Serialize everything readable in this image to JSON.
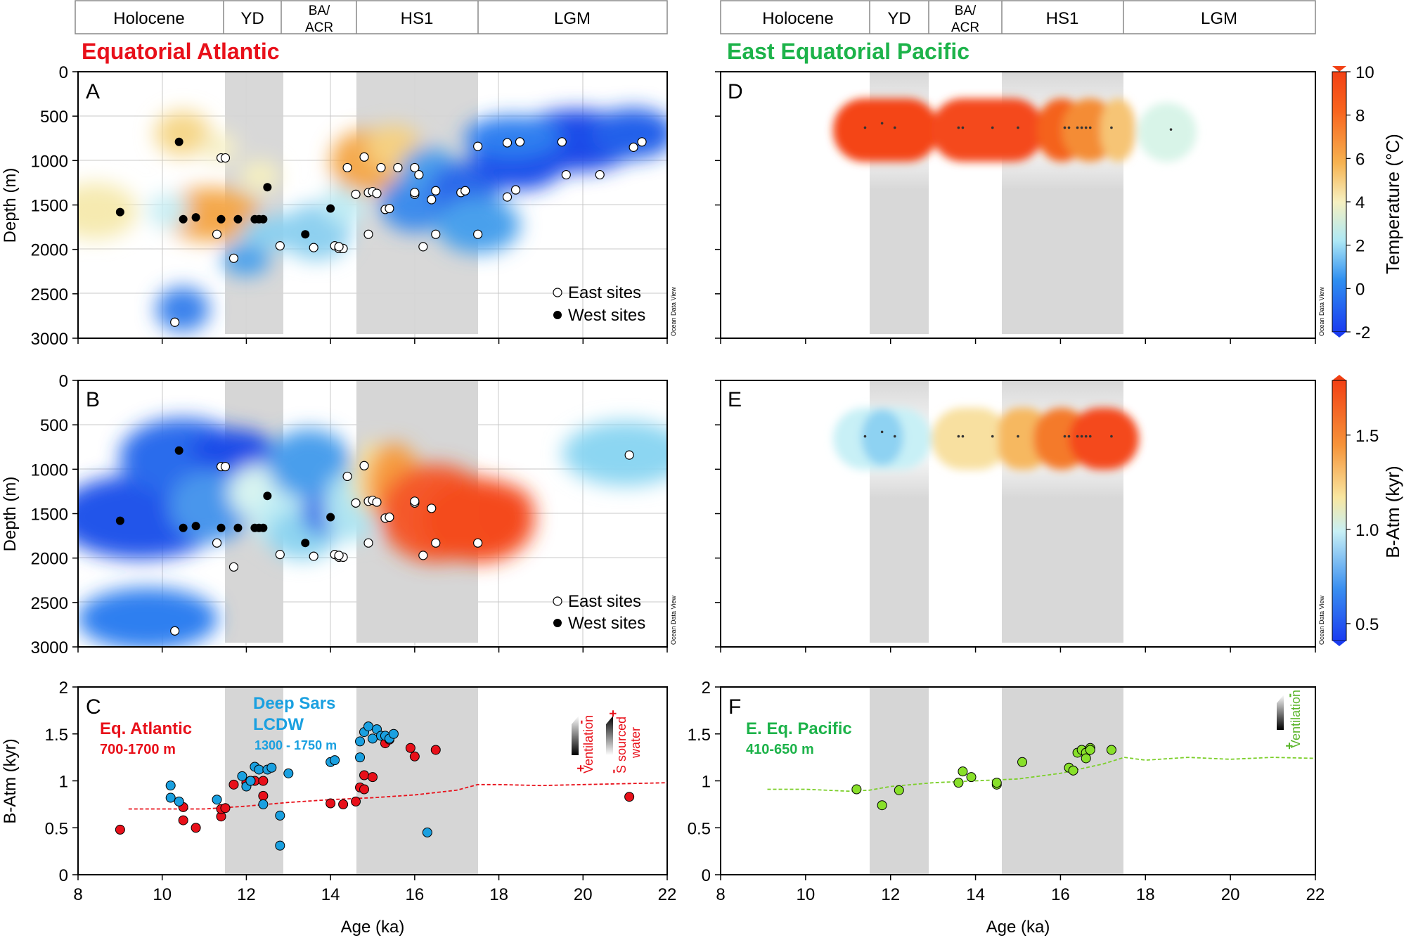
{
  "colors": {
    "atlantic_red": "#e8101a",
    "pacific_green": "#1db34a",
    "lcdw_blue": "#1aa0e0",
    "green_marker": "#88e02a",
    "green_line": "#7ccf2a",
    "band_grey": "#d4d4d4"
  },
  "periods": [
    "Holocene",
    "YD",
    "BA/ACR",
    "HS1",
    "LGM"
  ],
  "panel_titles": {
    "left": "Equatorial Atlantic",
    "right": "East Equatorial Pacific"
  },
  "labels": {
    "depth": "Depth (m)",
    "batm": "B-Atm (kyr)",
    "age": "Age (ka)",
    "temperature": "Temperature (°C)",
    "batm_scale": "B-Atm (kyr)",
    "odv": "Ocean Data View",
    "east": "East sites",
    "west": "West sites",
    "ventilation": "Ventilation",
    "s_sourced": "S sourced",
    "water": "water"
  },
  "annotations": {
    "eq_atlantic": "Eq. Atlantic",
    "eq_atlantic_depth": "700-1700 m",
    "deep_sars": "Deep Sars",
    "lcdw": "LCDW",
    "lcdw_depth": "1300 - 1750 m",
    "e_eq_pacific": "E. Eq. Pacific",
    "e_eq_pacific_depth": "410-650 m"
  },
  "chart_data": [
    {
      "id": "A",
      "type": "scatter",
      "title": "A",
      "xlim": [
        8,
        22
      ],
      "ylim": [
        3000,
        0
      ],
      "xlabel": "",
      "ylabel": "Depth (m)",
      "xticks": [
        8,
        10,
        12,
        14,
        16,
        18,
        20,
        22
      ],
      "yticks": [
        0,
        500,
        1000,
        1500,
        2000,
        2500,
        3000
      ],
      "legend": [
        "East sites",
        "West sites"
      ],
      "east_sites": [
        [
          10.3,
          2820
        ],
        [
          11.3,
          1830
        ],
        [
          11.4,
          970
        ],
        [
          11.5,
          970
        ],
        [
          11.7,
          2100
        ],
        [
          12.8,
          1960
        ],
        [
          13.6,
          1980
        ],
        [
          14.1,
          1960
        ],
        [
          14.2,
          1990
        ],
        [
          14.3,
          1990
        ],
        [
          14.2,
          1970
        ],
        [
          14.4,
          1080
        ],
        [
          14.6,
          1380
        ],
        [
          14.8,
          960
        ],
        [
          14.9,
          1360
        ],
        [
          14.9,
          1830
        ],
        [
          15.0,
          1350
        ],
        [
          15.1,
          1370
        ],
        [
          15.2,
          1080
        ],
        [
          15.3,
          1550
        ],
        [
          15.4,
          1540
        ],
        [
          15.6,
          1080
        ],
        [
          16.0,
          1380
        ],
        [
          16.0,
          1360
        ],
        [
          16.0,
          1080
        ],
        [
          16.1,
          1160
        ],
        [
          16.2,
          1970
        ],
        [
          16.4,
          1440
        ],
        [
          16.5,
          1830
        ],
        [
          16.5,
          1340
        ],
        [
          17.1,
          1360
        ],
        [
          17.2,
          1340
        ],
        [
          17.5,
          1830
        ],
        [
          17.5,
          840
        ],
        [
          18.2,
          1410
        ],
        [
          18.4,
          1330
        ],
        [
          18.2,
          800
        ],
        [
          18.5,
          790
        ],
        [
          19.5,
          790
        ],
        [
          19.6,
          1160
        ],
        [
          20.4,
          1160
        ],
        [
          21.2,
          850
        ],
        [
          21.4,
          790
        ]
      ],
      "west_sites": [
        [
          9.0,
          1580
        ],
        [
          10.4,
          790
        ],
        [
          10.5,
          1660
        ],
        [
          10.8,
          1640
        ],
        [
          11.4,
          1660
        ],
        [
          11.8,
          1660
        ],
        [
          12.2,
          1660
        ],
        [
          12.3,
          1660
        ],
        [
          12.4,
          1660
        ],
        [
          12.5,
          1300
        ],
        [
          13.4,
          1830
        ],
        [
          14.0,
          1540
        ]
      ]
    },
    {
      "id": "B",
      "type": "scatter",
      "title": "B",
      "xlim": [
        8,
        22
      ],
      "ylim": [
        3000,
        0
      ],
      "xlabel": "",
      "ylabel": "Depth (m)",
      "xticks": [
        8,
        10,
        12,
        14,
        16,
        18,
        20,
        22
      ],
      "yticks": [
        0,
        500,
        1000,
        1500,
        2000,
        2500,
        3000
      ],
      "legend": [
        "East sites",
        "West sites"
      ],
      "east_sites": [
        [
          10.3,
          2820
        ],
        [
          11.3,
          1830
        ],
        [
          11.4,
          970
        ],
        [
          11.5,
          970
        ],
        [
          11.7,
          2100
        ],
        [
          12.8,
          1960
        ],
        [
          13.6,
          1980
        ],
        [
          14.1,
          1960
        ],
        [
          14.2,
          1990
        ],
        [
          14.3,
          1990
        ],
        [
          14.2,
          1970
        ],
        [
          14.4,
          1080
        ],
        [
          14.6,
          1380
        ],
        [
          14.8,
          960
        ],
        [
          14.9,
          1360
        ],
        [
          14.9,
          1830
        ],
        [
          15.0,
          1350
        ],
        [
          15.1,
          1370
        ],
        [
          15.3,
          1550
        ],
        [
          15.4,
          1540
        ],
        [
          16.0,
          1380
        ],
        [
          16.0,
          1360
        ],
        [
          16.2,
          1970
        ],
        [
          16.4,
          1440
        ],
        [
          16.5,
          1830
        ],
        [
          17.5,
          1830
        ],
        [
          21.1,
          840
        ]
      ],
      "west_sites": [
        [
          9.0,
          1580
        ],
        [
          10.4,
          790
        ],
        [
          10.5,
          1660
        ],
        [
          10.8,
          1640
        ],
        [
          11.4,
          1660
        ],
        [
          11.8,
          1660
        ],
        [
          12.2,
          1660
        ],
        [
          12.3,
          1660
        ],
        [
          12.4,
          1660
        ],
        [
          12.5,
          1300
        ],
        [
          13.4,
          1830
        ],
        [
          14.0,
          1540
        ]
      ]
    },
    {
      "id": "C",
      "type": "scatter",
      "title": "C",
      "xlim": [
        8,
        22
      ],
      "ylim": [
        0,
        2
      ],
      "xlabel": "Age (ka)",
      "ylabel": "B-Atm (kyr)",
      "xticks": [
        8,
        10,
        12,
        14,
        16,
        18,
        20,
        22
      ],
      "yticks": [
        0,
        0.5,
        1,
        1.5,
        2
      ],
      "series": [
        {
          "name": "Eq. Atlantic 700-1700 m",
          "points": [
            [
              9.0,
              0.48
            ],
            [
              10.5,
              0.72
            ],
            [
              10.5,
              0.58
            ],
            [
              10.8,
              0.5
            ],
            [
              11.4,
              0.62
            ],
            [
              11.4,
              0.7
            ],
            [
              11.5,
              0.71
            ],
            [
              11.7,
              0.96
            ],
            [
              12.0,
              0.98
            ],
            [
              12.2,
              1.0
            ],
            [
              12.4,
              1.0
            ],
            [
              12.4,
              0.84
            ],
            [
              14.0,
              0.76
            ],
            [
              14.3,
              0.75
            ],
            [
              14.6,
              0.78
            ],
            [
              14.7,
              0.93
            ],
            [
              14.8,
              0.91
            ],
            [
              14.8,
              1.06
            ],
            [
              15.0,
              1.04
            ],
            [
              15.3,
              1.4
            ],
            [
              15.4,
              1.44
            ],
            [
              15.9,
              1.35
            ],
            [
              16.0,
              1.26
            ],
            [
              16.5,
              1.33
            ],
            [
              21.1,
              0.83
            ]
          ]
        },
        {
          "name": "Deep Sars LCDW 1300 - 1750 m",
          "points": [
            [
              10.2,
              0.95
            ],
            [
              10.2,
              0.82
            ],
            [
              10.4,
              0.78
            ],
            [
              11.3,
              0.8
            ],
            [
              11.9,
              1.05
            ],
            [
              12.0,
              0.94
            ],
            [
              12.1,
              1.0
            ],
            [
              12.1,
              1.0
            ],
            [
              12.2,
              1.15
            ],
            [
              12.3,
              1.12
            ],
            [
              12.4,
              0.75
            ],
            [
              12.5,
              1.12
            ],
            [
              12.6,
              1.14
            ],
            [
              12.8,
              0.63
            ],
            [
              12.8,
              0.31
            ],
            [
              13.0,
              1.08
            ],
            [
              14.0,
              1.2
            ],
            [
              14.1,
              1.22
            ],
            [
              14.7,
              1.25
            ],
            [
              14.7,
              1.42
            ],
            [
              14.8,
              1.52
            ],
            [
              14.9,
              1.58
            ],
            [
              15.0,
              1.45
            ],
            [
              15.1,
              1.55
            ],
            [
              15.2,
              1.48
            ],
            [
              15.3,
              1.48
            ],
            [
              15.4,
              1.45
            ],
            [
              15.5,
              1.5
            ],
            [
              16.3,
              0.45
            ]
          ]
        }
      ],
      "lines": [
        {
          "name": "Eq. Atlantic model",
          "points": [
            [
              9.2,
              0.7
            ],
            [
              10,
              0.7
            ],
            [
              11,
              0.7
            ],
            [
              12,
              0.73
            ],
            [
              13,
              0.77
            ],
            [
              14,
              0.8
            ],
            [
              15,
              0.82
            ],
            [
              16,
              0.85
            ],
            [
              17,
              0.9
            ],
            [
              17.5,
              0.96
            ],
            [
              18,
              0.96
            ],
            [
              19,
              0.95
            ],
            [
              20,
              0.96
            ],
            [
              21,
              0.97
            ],
            [
              22,
              0.98
            ]
          ]
        }
      ]
    },
    {
      "id": "D",
      "type": "scatter",
      "title": "D",
      "xlim": [
        8,
        22
      ],
      "ylim": [
        3000,
        0
      ],
      "xlabel": "",
      "ylabel": "",
      "xticks": [
        8,
        10,
        12,
        14,
        16,
        18,
        20,
        22
      ],
      "yticks": [
        0,
        500,
        1000,
        1500,
        2000,
        2500,
        3000
      ],
      "colorbar": {
        "label": "Temperature (°C)",
        "ticks": [
          -2,
          0,
          2,
          4,
          6,
          8,
          10
        ]
      },
      "sites": [
        [
          11.4,
          630
        ],
        [
          11.8,
          580
        ],
        [
          12.1,
          630
        ],
        [
          13.6,
          630
        ],
        [
          13.7,
          630
        ],
        [
          14.4,
          630
        ],
        [
          15.0,
          630
        ],
        [
          16.1,
          630
        ],
        [
          16.2,
          630
        ],
        [
          16.4,
          630
        ],
        [
          16.5,
          630
        ],
        [
          16.6,
          630
        ],
        [
          16.7,
          630
        ],
        [
          17.2,
          630
        ],
        [
          18.6,
          650
        ]
      ]
    },
    {
      "id": "E",
      "type": "scatter",
      "title": "E",
      "xlim": [
        8,
        22
      ],
      "ylim": [
        3000,
        0
      ],
      "xlabel": "",
      "ylabel": "",
      "xticks": [
        8,
        10,
        12,
        14,
        16,
        18,
        20,
        22
      ],
      "yticks": [
        0,
        500,
        1000,
        1500,
        2000,
        2500,
        3000
      ],
      "colorbar": {
        "label": "B-Atm (kyr)",
        "ticks": [
          0.5,
          1.0,
          1.5
        ]
      },
      "sites": [
        [
          11.4,
          630
        ],
        [
          11.8,
          580
        ],
        [
          12.1,
          630
        ],
        [
          13.6,
          630
        ],
        [
          13.7,
          630
        ],
        [
          14.4,
          630
        ],
        [
          15.0,
          630
        ],
        [
          16.1,
          630
        ],
        [
          16.2,
          630
        ],
        [
          16.4,
          630
        ],
        [
          16.5,
          630
        ],
        [
          16.6,
          630
        ],
        [
          16.7,
          630
        ],
        [
          17.2,
          630
        ]
      ]
    },
    {
      "id": "F",
      "type": "scatter",
      "title": "F",
      "xlim": [
        8,
        22
      ],
      "ylim": [
        0,
        2
      ],
      "xlabel": "Age (ka)",
      "ylabel": "",
      "xticks": [
        8,
        10,
        12,
        14,
        16,
        18,
        20,
        22
      ],
      "yticks": [
        0,
        0.5,
        1,
        1.5,
        2
      ],
      "series": [
        {
          "name": "E. Eq. Pacific 410-650 m",
          "points": [
            [
              11.2,
              0.91
            ],
            [
              11.8,
              0.74
            ],
            [
              12.2,
              0.9
            ],
            [
              13.6,
              0.98
            ],
            [
              13.7,
              1.1
            ],
            [
              13.9,
              1.04
            ],
            [
              14.5,
              0.96
            ],
            [
              14.5,
              0.98
            ],
            [
              15.1,
              1.2
            ],
            [
              16.2,
              1.14
            ],
            [
              16.3,
              1.11
            ],
            [
              16.4,
              1.3
            ],
            [
              16.5,
              1.33
            ],
            [
              16.6,
              1.3
            ],
            [
              16.6,
              1.24
            ],
            [
              16.7,
              1.35
            ],
            [
              16.7,
              1.33
            ],
            [
              17.2,
              1.33
            ]
          ]
        }
      ],
      "lines": [
        {
          "name": "E. Eq. Pacific model",
          "points": [
            [
              9.1,
              0.91
            ],
            [
              10,
              0.91
            ],
            [
              11,
              0.89
            ],
            [
              11.5,
              0.9
            ],
            [
              12,
              0.94
            ],
            [
              13,
              0.98
            ],
            [
              14,
              1.0
            ],
            [
              15,
              1.02
            ],
            [
              16,
              1.08
            ],
            [
              17,
              1.18
            ],
            [
              17.5,
              1.25
            ],
            [
              18,
              1.22
            ],
            [
              19,
              1.25
            ],
            [
              20,
              1.23
            ],
            [
              21,
              1.25
            ],
            [
              22,
              1.24
            ]
          ]
        }
      ]
    }
  ]
}
